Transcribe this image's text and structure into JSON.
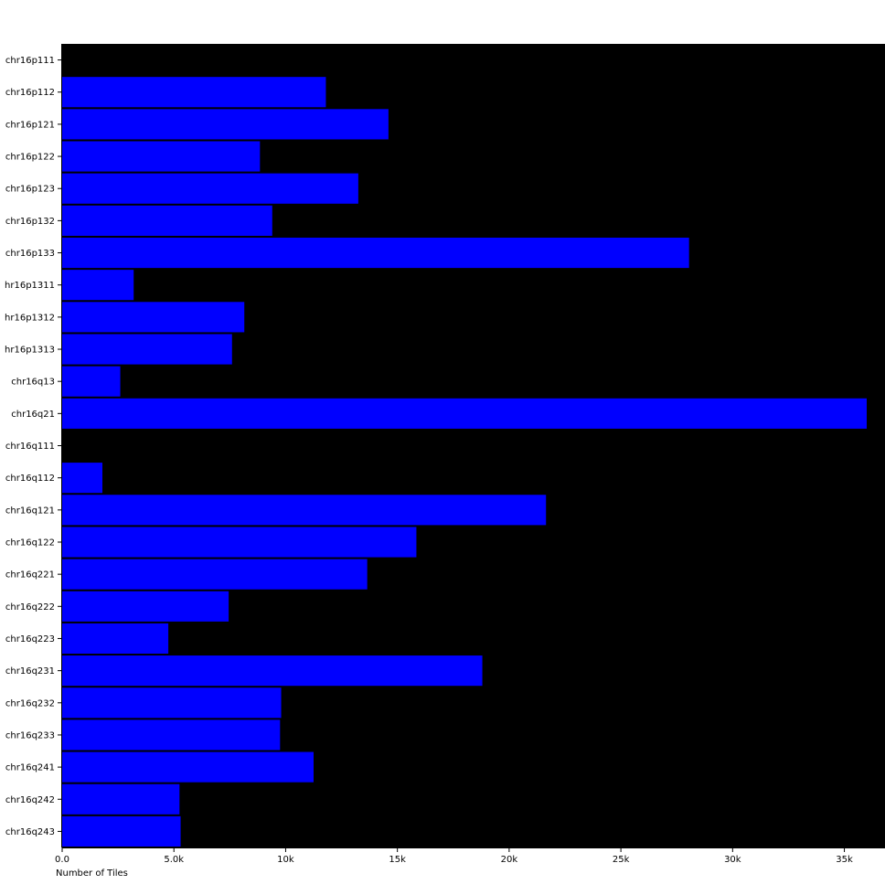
{
  "chart_data": {
    "type": "bar",
    "orientation": "horizontal",
    "categories": [
      "chr16p111",
      "chr16p112",
      "chr16p121",
      "chr16p122",
      "chr16p123",
      "chr16p132",
      "chr16p133",
      "hr16p1311",
      "hr16p1312",
      "hr16p1313",
      "chr16q13",
      "chr16q21",
      "chr16q111",
      "chr16q112",
      "chr16q121",
      "chr16q122",
      "chr16q221",
      "chr16q222",
      "chr16q223",
      "chr16q231",
      "chr16q232",
      "chr16q233",
      "chr16q241",
      "chr16q242",
      "chr16q243"
    ],
    "values": [
      0,
      11800,
      14600,
      8850,
      13250,
      9400,
      28050,
      3200,
      8150,
      7600,
      2600,
      36000,
      0,
      1800,
      21650,
      15850,
      13650,
      7450,
      4750,
      18800,
      9800,
      9750,
      11250,
      5250,
      5300
    ],
    "xlabel": "Number of Tiles",
    "ylabel": "",
    "xlim": [
      0,
      36000
    ],
    "xticks": [
      0,
      5000,
      10000,
      15000,
      20000,
      25000,
      30000,
      35000
    ],
    "xtick_labels": [
      "0.0",
      "5.0k",
      "10k",
      "15k",
      "20k",
      "25k",
      "30k",
      "35k"
    ],
    "grid": false,
    "colors": {
      "bar": "#0000ff",
      "plot_background": "#000000",
      "page_background": "#ffffff",
      "axis": "#000000"
    }
  }
}
